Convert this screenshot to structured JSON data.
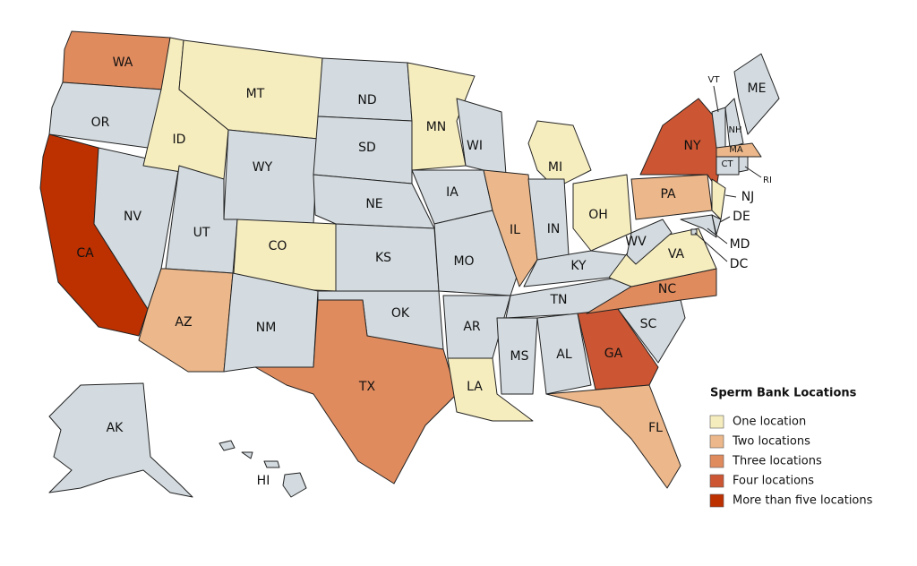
{
  "map": {
    "states": [
      {
        "label": "WA",
        "color": "#e08b5e"
      },
      {
        "label": "OR",
        "color": "#d3dbe0"
      },
      {
        "label": "CA",
        "color": "#bd3000"
      },
      {
        "label": "NV",
        "color": "#d3dbe0"
      },
      {
        "label": "ID",
        "color": "#f6edbf"
      },
      {
        "label": "MT",
        "color": "#f6edbf"
      },
      {
        "label": "WY",
        "color": "#d3dbe0"
      },
      {
        "label": "UT",
        "color": "#d3dbe0"
      },
      {
        "label": "CO",
        "color": "#f6edbf"
      },
      {
        "label": "AZ",
        "color": "#ecb78a"
      },
      {
        "label": "NM",
        "color": "#d3dbe0"
      },
      {
        "label": "ND",
        "color": "#d3dbe0"
      },
      {
        "label": "SD",
        "color": "#d3dbe0"
      },
      {
        "label": "NE",
        "color": "#d3dbe0"
      },
      {
        "label": "KS",
        "color": "#d3dbe0"
      },
      {
        "label": "OK",
        "color": "#d3dbe0"
      },
      {
        "label": "TX",
        "color": "#e08b5e"
      },
      {
        "label": "MN",
        "color": "#f6edbf"
      },
      {
        "label": "IA",
        "color": "#d3dbe0"
      },
      {
        "label": "MO",
        "color": "#d3dbe0"
      },
      {
        "label": "AR",
        "color": "#d3dbe0"
      },
      {
        "label": "LA",
        "color": "#f6edbf"
      },
      {
        "label": "WI",
        "color": "#d3dbe0"
      },
      {
        "label": "IL",
        "color": "#ecb78a"
      },
      {
        "label": "MI",
        "color": "#f6edbf"
      },
      {
        "label": "IN",
        "color": "#d3dbe0"
      },
      {
        "label": "OH",
        "color": "#f6edbf"
      },
      {
        "label": "KY",
        "color": "#d3dbe0"
      },
      {
        "label": "TN",
        "color": "#d3dbe0"
      },
      {
        "label": "MS",
        "color": "#d3dbe0"
      },
      {
        "label": "AL",
        "color": "#d3dbe0"
      },
      {
        "label": "GA",
        "color": "#cc5633"
      },
      {
        "label": "FL",
        "color": "#ecb78a"
      },
      {
        "label": "SC",
        "color": "#d3dbe0"
      },
      {
        "label": "NC",
        "color": "#e08b5e"
      },
      {
        "label": "VA",
        "color": "#f6edbf"
      },
      {
        "label": "WV",
        "color": "#d3dbe0"
      },
      {
        "label": "PA",
        "color": "#ecb78a"
      },
      {
        "label": "NY",
        "color": "#cc5633"
      },
      {
        "label": "NJ",
        "color": "#f6edbf"
      },
      {
        "label": "DE",
        "color": "#d3dbe0"
      },
      {
        "label": "MD",
        "color": "#d3dbe0"
      },
      {
        "label": "DC",
        "color": "#d3dbe0"
      },
      {
        "label": "VT",
        "color": "#d3dbe0"
      },
      {
        "label": "NH",
        "color": "#d3dbe0"
      },
      {
        "label": "ME",
        "color": "#d3dbe0"
      },
      {
        "label": "MA",
        "color": "#ecb78a"
      },
      {
        "label": "CT",
        "color": "#d3dbe0"
      },
      {
        "label": "RI",
        "color": "#d3dbe0"
      },
      {
        "label": "AK",
        "color": "#d3dbe0"
      },
      {
        "label": "HI",
        "color": "#d3dbe0"
      }
    ]
  },
  "legend": {
    "title": "Sperm Bank Locations",
    "items": [
      {
        "label": "One location",
        "color": "#f6edbf"
      },
      {
        "label": "Two locations",
        "color": "#ecb78a"
      },
      {
        "label": "Three locations",
        "color": "#e08b5e"
      },
      {
        "label": "Four locations",
        "color": "#cc5633"
      },
      {
        "label": "More than five locations",
        "color": "#bd3000"
      }
    ]
  }
}
